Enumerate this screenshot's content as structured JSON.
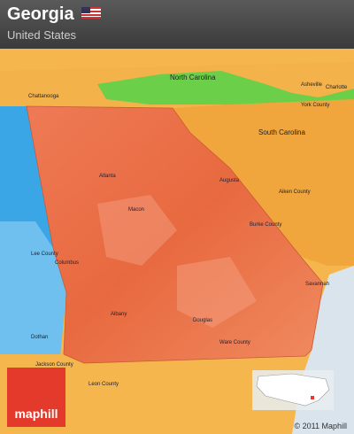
{
  "header": {
    "title": "Georgia",
    "subtitle": "United States"
  },
  "map": {
    "labels": [
      "North Carolina",
      "South Carolina",
      "Chattanooga",
      "Asheville",
      "Charlotte",
      "York County",
      "Aiken County",
      "Burke County",
      "Lee County",
      "Jackson County",
      "Leon County",
      "Ware County",
      "Atlanta",
      "Macon",
      "Columbus",
      "Albany",
      "Augusta",
      "Savannah",
      "Dothan",
      "Douglas"
    ]
  },
  "footer": {
    "logo": "maphill",
    "copyright": "© 2011 Maphill"
  }
}
